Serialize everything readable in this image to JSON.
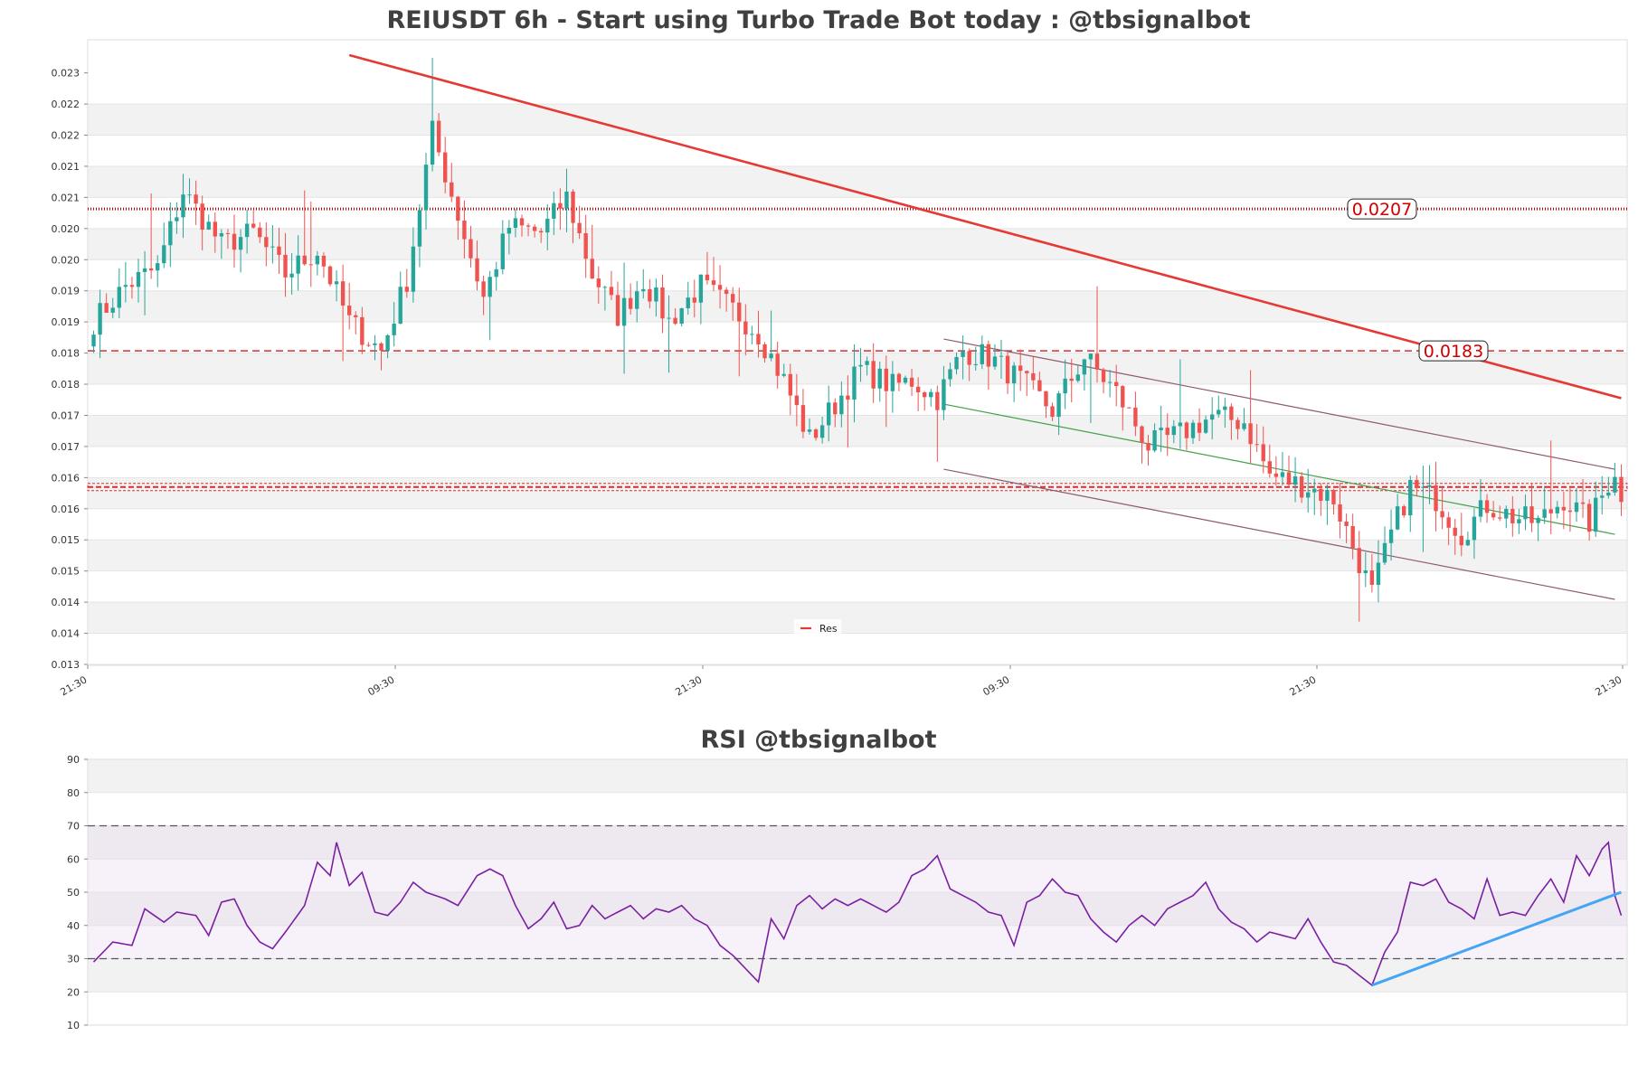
{
  "chart_data": [
    {
      "type": "candlestick",
      "title": "REIUSDT 6h - Start using Turbo Trade Bot today : @tbsignalbot",
      "ylim": [
        0.013,
        0.0233
      ],
      "y_tick_labels": [
        "0.013",
        "0.014",
        "0.014",
        "0.015",
        "0.015",
        "0.016",
        "0.016",
        "0.017",
        "0.017",
        "0.018",
        "0.018",
        "0.019",
        "0.019",
        "0.020",
        "0.020",
        "0.021",
        "0.021",
        "0.022",
        "0.022",
        "0.023"
      ],
      "x_tick_labels": [
        "21:30",
        "09:30",
        "21:30",
        "09:30",
        "21:30",
        "21:30"
      ],
      "num_candles": 240,
      "levels": [
        {
          "value": 0.0207,
          "label": "0.0207",
          "style": "dotted"
        },
        {
          "value": 0.0183,
          "label": "0.0183",
          "style": "dashed"
        },
        {
          "value": 0.016,
          "label": "",
          "style": "hatched"
        }
      ],
      "trendline": {
        "name": "Res",
        "from": [
          40,
          0.0233
        ],
        "to": [
          239,
          0.0175
        ]
      },
      "channel": {
        "upper": {
          "from": [
            133,
            0.0185
          ],
          "to": [
            238,
            0.0163
          ]
        },
        "middle": {
          "from": [
            133,
            0.0174
          ],
          "to": [
            238,
            0.0152
          ]
        },
        "lower": {
          "from": [
            133,
            0.0163
          ],
          "to": [
            238,
            0.0141
          ]
        }
      },
      "legend": [
        "Res"
      ],
      "close_anchors": [
        [
          0,
          0.0188
        ],
        [
          5,
          0.0194
        ],
        [
          10,
          0.0197
        ],
        [
          14,
          0.021
        ],
        [
          20,
          0.0201
        ],
        [
          25,
          0.0203
        ],
        [
          30,
          0.0196
        ],
        [
          35,
          0.02
        ],
        [
          40,
          0.0188
        ],
        [
          45,
          0.0183
        ],
        [
          49,
          0.0195
        ],
        [
          53,
          0.022
        ],
        [
          57,
          0.0206
        ],
        [
          61,
          0.0192
        ],
        [
          65,
          0.0204
        ],
        [
          70,
          0.0203
        ],
        [
          74,
          0.0209
        ],
        [
          78,
          0.0196
        ],
        [
          82,
          0.0189
        ],
        [
          86,
          0.0195
        ],
        [
          90,
          0.0188
        ],
        [
          95,
          0.0194
        ],
        [
          100,
          0.019
        ],
        [
          104,
          0.0186
        ],
        [
          108,
          0.0178
        ],
        [
          112,
          0.0168
        ],
        [
          116,
          0.0174
        ],
        [
          120,
          0.018
        ],
        [
          125,
          0.0177
        ],
        [
          128,
          0.0178
        ],
        [
          132,
          0.0175
        ],
        [
          136,
          0.0183
        ],
        [
          140,
          0.0182
        ],
        [
          145,
          0.0178
        ],
        [
          150,
          0.0173
        ],
        [
          155,
          0.0182
        ],
        [
          160,
          0.0176
        ],
        [
          165,
          0.0167
        ],
        [
          170,
          0.0169
        ],
        [
          175,
          0.0172
        ],
        [
          180,
          0.0171
        ],
        [
          184,
          0.0162
        ],
        [
          190,
          0.016
        ],
        [
          194,
          0.0158
        ],
        [
          197,
          0.015
        ],
        [
          200,
          0.0142
        ],
        [
          203,
          0.0152
        ],
        [
          206,
          0.016
        ],
        [
          210,
          0.0158
        ],
        [
          214,
          0.0152
        ],
        [
          218,
          0.0157
        ],
        [
          222,
          0.0155
        ],
        [
          226,
          0.0154
        ],
        [
          230,
          0.0158
        ],
        [
          234,
          0.0154
        ],
        [
          238,
          0.0163
        ],
        [
          239,
          0.0157
        ]
      ]
    },
    {
      "type": "line",
      "title": "RSI @tbsignalbot",
      "ylim": [
        10,
        90
      ],
      "y_tick_labels": [
        "10",
        "20",
        "30",
        "40",
        "50",
        "60",
        "70",
        "80",
        "90"
      ],
      "overbought": 70,
      "oversold": 30,
      "num_points": 240,
      "trendline": {
        "from": [
          200,
          22
        ],
        "to": [
          239,
          50
        ]
      },
      "rsi_anchors": [
        [
          0,
          29
        ],
        [
          3,
          35
        ],
        [
          6,
          34
        ],
        [
          8,
          45
        ],
        [
          11,
          41
        ],
        [
          13,
          44
        ],
        [
          16,
          43
        ],
        [
          18,
          37
        ],
        [
          20,
          47
        ],
        [
          22,
          48
        ],
        [
          24,
          40
        ],
        [
          26,
          35
        ],
        [
          28,
          33
        ],
        [
          30,
          38
        ],
        [
          33,
          46
        ],
        [
          35,
          59
        ],
        [
          37,
          55
        ],
        [
          38,
          65
        ],
        [
          40,
          52
        ],
        [
          42,
          56
        ],
        [
          44,
          44
        ],
        [
          46,
          43
        ],
        [
          48,
          47
        ],
        [
          50,
          53
        ],
        [
          52,
          50
        ],
        [
          55,
          48
        ],
        [
          57,
          46
        ],
        [
          60,
          55
        ],
        [
          62,
          57
        ],
        [
          64,
          55
        ],
        [
          66,
          46
        ],
        [
          68,
          39
        ],
        [
          70,
          42
        ],
        [
          72,
          47
        ],
        [
          74,
          39
        ],
        [
          76,
          40
        ],
        [
          78,
          46
        ],
        [
          80,
          42
        ],
        [
          82,
          44
        ],
        [
          84,
          46
        ],
        [
          86,
          42
        ],
        [
          88,
          45
        ],
        [
          90,
          44
        ],
        [
          92,
          46
        ],
        [
          94,
          42
        ],
        [
          96,
          40
        ],
        [
          98,
          34
        ],
        [
          100,
          31
        ],
        [
          102,
          27
        ],
        [
          104,
          23
        ],
        [
          106,
          42
        ],
        [
          108,
          36
        ],
        [
          110,
          46
        ],
        [
          112,
          49
        ],
        [
          114,
          45
        ],
        [
          116,
          48
        ],
        [
          118,
          46
        ],
        [
          120,
          48
        ],
        [
          122,
          46
        ],
        [
          124,
          44
        ],
        [
          126,
          47
        ],
        [
          128,
          55
        ],
        [
          130,
          57
        ],
        [
          132,
          61
        ],
        [
          134,
          51
        ],
        [
          136,
          49
        ],
        [
          138,
          47
        ],
        [
          140,
          44
        ],
        [
          142,
          43
        ],
        [
          144,
          34
        ],
        [
          146,
          47
        ],
        [
          148,
          49
        ],
        [
          150,
          54
        ],
        [
          152,
          50
        ],
        [
          154,
          49
        ],
        [
          156,
          42
        ],
        [
          158,
          38
        ],
        [
          160,
          35
        ],
        [
          162,
          40
        ],
        [
          164,
          43
        ],
        [
          166,
          40
        ],
        [
          168,
          45
        ],
        [
          170,
          47
        ],
        [
          172,
          49
        ],
        [
          174,
          53
        ],
        [
          176,
          45
        ],
        [
          178,
          41
        ],
        [
          180,
          39
        ],
        [
          182,
          35
        ],
        [
          184,
          38
        ],
        [
          186,
          37
        ],
        [
          188,
          36
        ],
        [
          190,
          42
        ],
        [
          192,
          35
        ],
        [
          194,
          29
        ],
        [
          196,
          28
        ],
        [
          198,
          25
        ],
        [
          200,
          22
        ],
        [
          202,
          32
        ],
        [
          204,
          38
        ],
        [
          206,
          53
        ],
        [
          208,
          52
        ],
        [
          210,
          54
        ],
        [
          212,
          47
        ],
        [
          214,
          45
        ],
        [
          216,
          42
        ],
        [
          218,
          54
        ],
        [
          220,
          43
        ],
        [
          222,
          44
        ],
        [
          224,
          43
        ],
        [
          226,
          49
        ],
        [
          228,
          54
        ],
        [
          230,
          47
        ],
        [
          232,
          61
        ],
        [
          234,
          55
        ],
        [
          236,
          63
        ],
        [
          237,
          65
        ],
        [
          238,
          49
        ],
        [
          239,
          43
        ]
      ]
    }
  ]
}
